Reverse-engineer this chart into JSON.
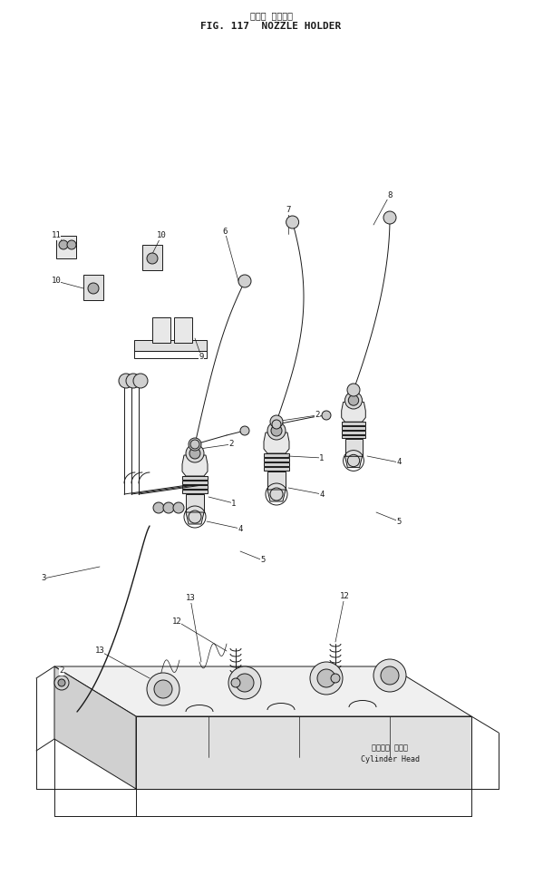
{
  "title_japanese": "ノズル ホルダ・",
  "title_english": "FIG. 117  NOZZLE HOLDER",
  "bg_color": "#ffffff",
  "line_color": "#1a1a1a",
  "figsize": [
    5.99,
    9.65
  ],
  "dpi": 100,
  "cylinder_head_ja": "シリンダ ヘッド",
  "cylinder_head_en": "Cylinder Head"
}
